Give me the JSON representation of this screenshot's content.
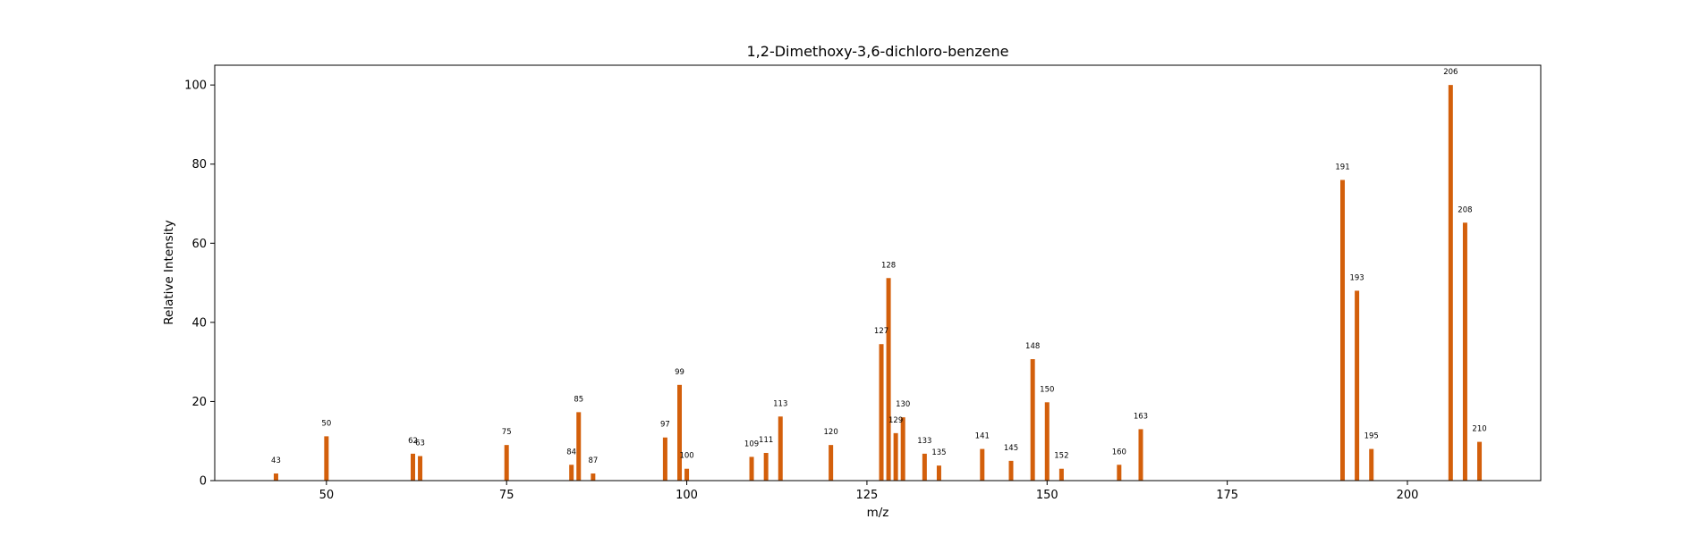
{
  "chart_data": {
    "type": "bar",
    "title": "1,2-Dimethoxy-3,6-dichloro-benzene",
    "xlabel": "m/z",
    "ylabel": "Relative Intensity",
    "xlim": [
      34.5,
      218.5
    ],
    "ylim": [
      0,
      105
    ],
    "xticks": [
      50,
      75,
      100,
      125,
      150,
      175,
      200
    ],
    "yticks": [
      0,
      20,
      40,
      60,
      80,
      100
    ],
    "grid": false,
    "bar_color": "#d35f0b",
    "peaks": [
      {
        "x": 43,
        "y": 1.8,
        "label": "43"
      },
      {
        "x": 50,
        "y": 11.2,
        "label": "50"
      },
      {
        "x": 62,
        "y": 6.8,
        "label": "62"
      },
      {
        "x": 63,
        "y": 6.2,
        "label": "63"
      },
      {
        "x": 75,
        "y": 9.0,
        "label": "75"
      },
      {
        "x": 84,
        "y": 4.0,
        "label": "84"
      },
      {
        "x": 85,
        "y": 17.3,
        "label": "85"
      },
      {
        "x": 87,
        "y": 1.8,
        "label": "87"
      },
      {
        "x": 97,
        "y": 10.9,
        "label": "97"
      },
      {
        "x": 99,
        "y": 24.2,
        "label": "99"
      },
      {
        "x": 100,
        "y": 3.0,
        "label": "100"
      },
      {
        "x": 109,
        "y": 6.0,
        "label": "109"
      },
      {
        "x": 111,
        "y": 7.0,
        "label": "111"
      },
      {
        "x": 113,
        "y": 16.2,
        "label": "113"
      },
      {
        "x": 120,
        "y": 9.0,
        "label": "120"
      },
      {
        "x": 127,
        "y": 34.5,
        "label": "127"
      },
      {
        "x": 128,
        "y": 51.2,
        "label": "128"
      },
      {
        "x": 129,
        "y": 12.0,
        "label": "129"
      },
      {
        "x": 130,
        "y": 16.0,
        "label": "130"
      },
      {
        "x": 133,
        "y": 6.8,
        "label": "133"
      },
      {
        "x": 135,
        "y": 3.8,
        "label": "135"
      },
      {
        "x": 141,
        "y": 8.0,
        "label": "141"
      },
      {
        "x": 145,
        "y": 5.0,
        "label": "145"
      },
      {
        "x": 148,
        "y": 30.7,
        "label": "148"
      },
      {
        "x": 150,
        "y": 19.8,
        "label": "150"
      },
      {
        "x": 152,
        "y": 3.0,
        "label": "152"
      },
      {
        "x": 160,
        "y": 4.0,
        "label": "160"
      },
      {
        "x": 163,
        "y": 13.0,
        "label": "163"
      },
      {
        "x": 191,
        "y": 76.0,
        "label": "191"
      },
      {
        "x": 193,
        "y": 48.0,
        "label": "193"
      },
      {
        "x": 195,
        "y": 8.0,
        "label": "195"
      },
      {
        "x": 206,
        "y": 100.0,
        "label": "206"
      },
      {
        "x": 208,
        "y": 65.2,
        "label": "208"
      },
      {
        "x": 210,
        "y": 9.8,
        "label": "210"
      }
    ]
  }
}
